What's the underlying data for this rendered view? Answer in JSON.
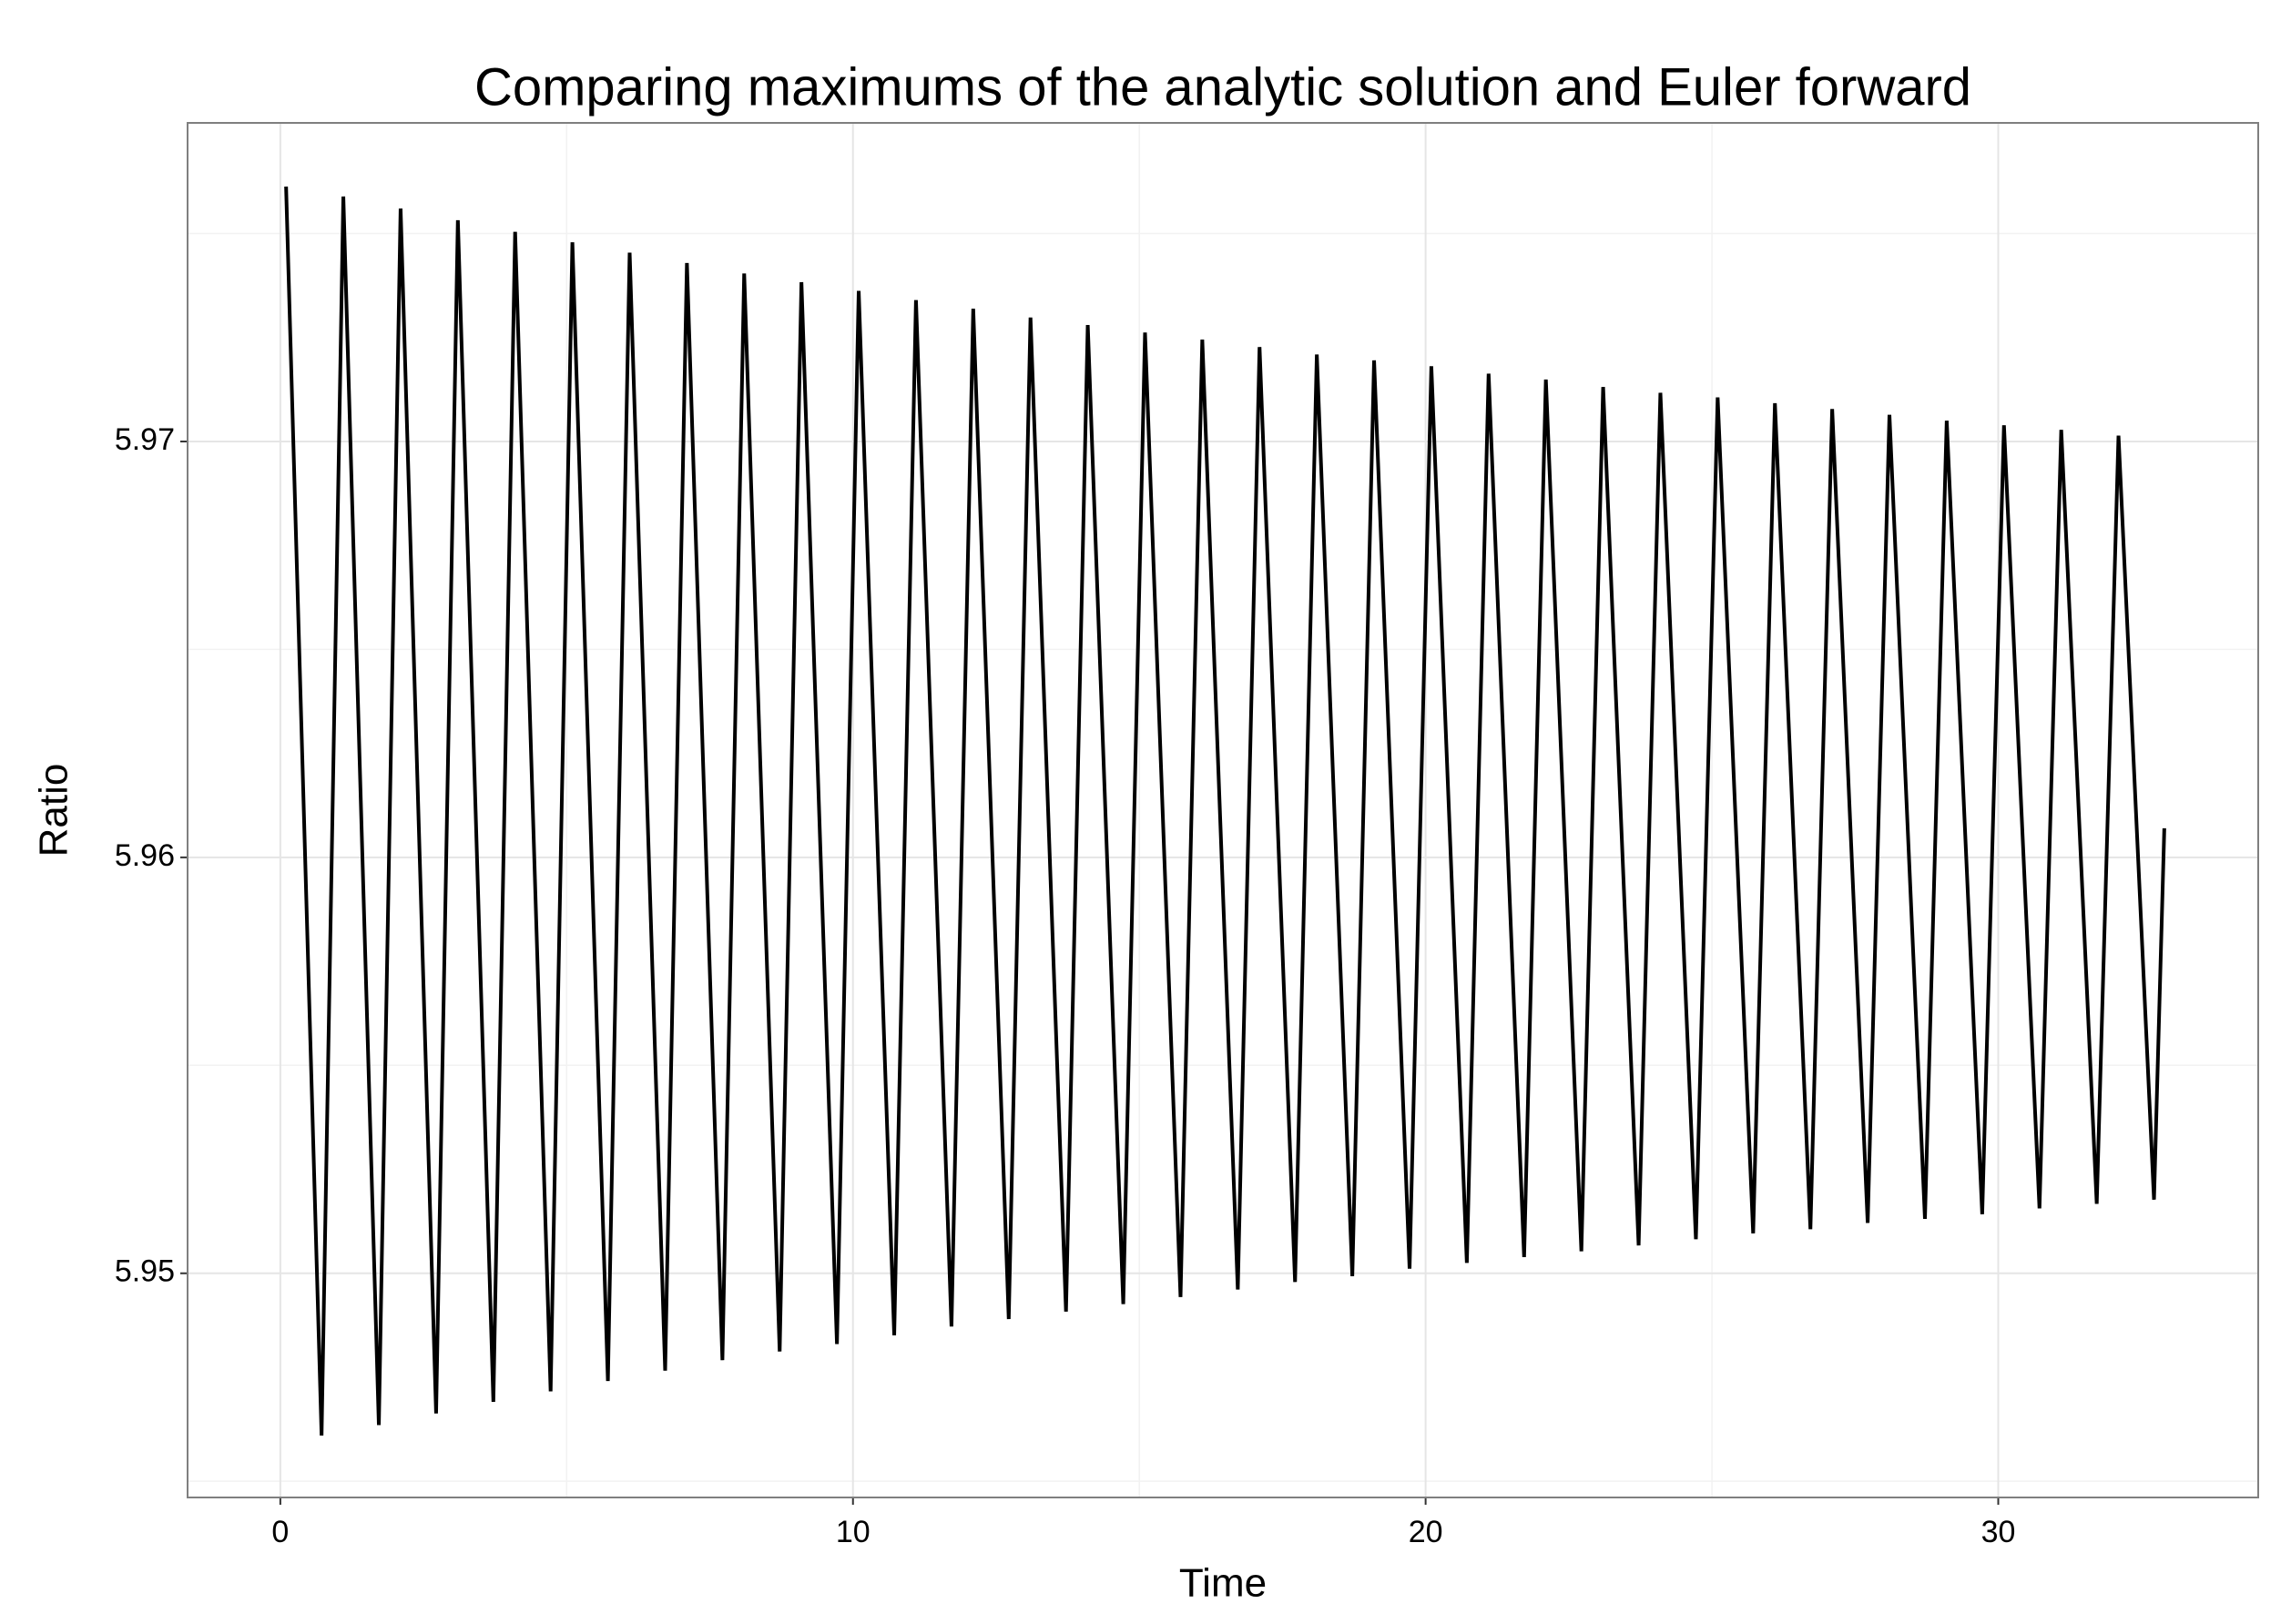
{
  "chart_data": {
    "type": "line",
    "title": "Comparing maximums of the analytic solution and Euler forward",
    "x_label": "Time",
    "y_label": "Ratio",
    "x": [
      0.1,
      0.72,
      1.1,
      1.72,
      2.1,
      2.72,
      3.1,
      3.72,
      4.1,
      4.72,
      5.1,
      5.72,
      6.1,
      6.72,
      7.1,
      7.72,
      8.1,
      8.72,
      9.1,
      9.72,
      10.1,
      10.72,
      11.1,
      11.72,
      12.1,
      12.72,
      13.1,
      13.72,
      14.1,
      14.72,
      15.1,
      15.72,
      16.1,
      16.72,
      17.1,
      17.72,
      18.1,
      18.72,
      19.1,
      19.72,
      20.1,
      20.72,
      21.1,
      21.72,
      22.1,
      22.72,
      23.1,
      23.72,
      24.1,
      24.72,
      25.1,
      25.72,
      26.1,
      26.72,
      27.1,
      27.72,
      28.1,
      28.72,
      29.1,
      29.72,
      30.1,
      30.72,
      31.1,
      31.72,
      32.1,
      32.72,
      32.9
    ],
    "series": [
      {
        "color": "#000000",
        "values": [
          5.97613,
          5.9461,
          5.97589,
          5.94635,
          5.9756,
          5.94663,
          5.97532,
          5.94691,
          5.97504,
          5.94716,
          5.97479,
          5.94741,
          5.97454,
          5.94766,
          5.97429,
          5.94791,
          5.97404,
          5.94812,
          5.97383,
          5.9483,
          5.97362,
          5.94851,
          5.9734,
          5.94872,
          5.97319,
          5.9489,
          5.97298,
          5.94908,
          5.9728,
          5.94926,
          5.97262,
          5.94943,
          5.97245,
          5.94961,
          5.97227,
          5.94979,
          5.97209,
          5.94993,
          5.97195,
          5.95011,
          5.97181,
          5.95025,
          5.97163,
          5.95039,
          5.97149,
          5.95053,
          5.97131,
          5.95067,
          5.97117,
          5.95082,
          5.97106,
          5.95096,
          5.97092,
          5.95106,
          5.97078,
          5.95121,
          5.97064,
          5.95131,
          5.9705,
          5.95142,
          5.97039,
          5.95156,
          5.97028,
          5.95167,
          5.97014,
          5.95177,
          5.9607
        ]
      }
    ],
    "xlim": [
      -1.62,
      34.54
    ],
    "ylim": [
      5.94461,
      5.97766
    ],
    "xticks": [
      0,
      10,
      20,
      30
    ],
    "yticks": [
      5.95,
      5.96,
      5.97
    ],
    "minor_xticks": [
      5,
      15,
      25
    ],
    "minor_yticks": [
      5.945,
      5.955,
      5.965,
      5.975
    ],
    "grid": true
  }
}
